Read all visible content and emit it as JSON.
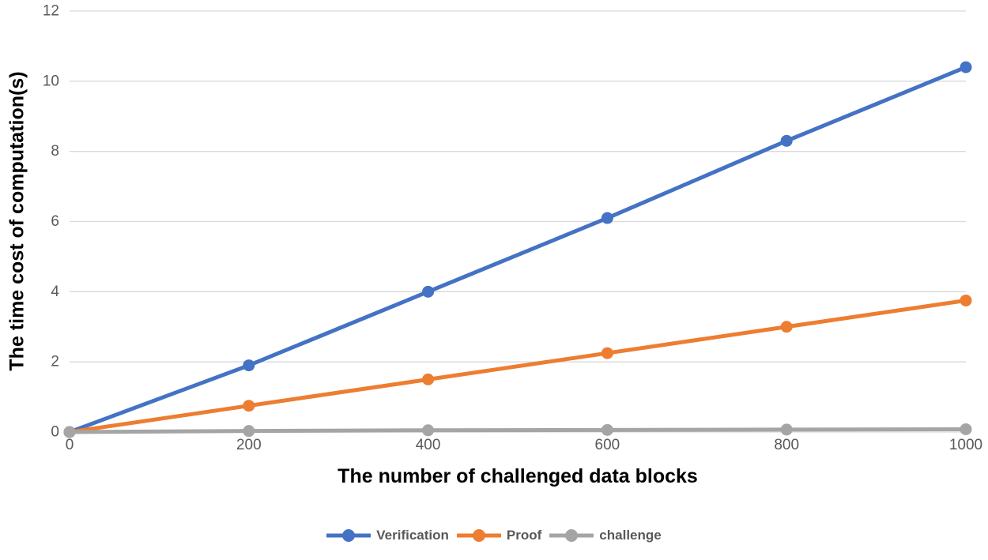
{
  "chart_data": {
    "type": "line",
    "x": [
      0,
      200,
      400,
      600,
      800,
      1000
    ],
    "series": [
      {
        "name": "Verification",
        "color": "#4472C4",
        "values": [
          0,
          1.9,
          4.0,
          6.1,
          8.3,
          10.4
        ]
      },
      {
        "name": "Proof",
        "color": "#ED7D31",
        "values": [
          0,
          0.75,
          1.5,
          2.25,
          3.0,
          3.75
        ]
      },
      {
        "name": "challenge",
        "color": "#A5A5A5",
        "values": [
          0,
          0.03,
          0.05,
          0.06,
          0.07,
          0.08
        ]
      }
    ],
    "title": "",
    "xlabel": "The number of challenged data blocks",
    "ylabel": "The time cost of computation(s)",
    "xticks": [
      0,
      200,
      400,
      600,
      800,
      1000
    ],
    "yticks": [
      0,
      2,
      4,
      6,
      8,
      10,
      12
    ],
    "xlim": [
      0,
      1000
    ],
    "ylim": [
      0,
      12
    ],
    "grid": "horizontal",
    "legend_position": "bottom",
    "marker": "circle",
    "colors": {
      "background": "#FFFFFF",
      "gridline": "#D9D9D9",
      "tick_label": "#595959",
      "axis_title": "#000000",
      "legend_text": "#595959"
    }
  }
}
